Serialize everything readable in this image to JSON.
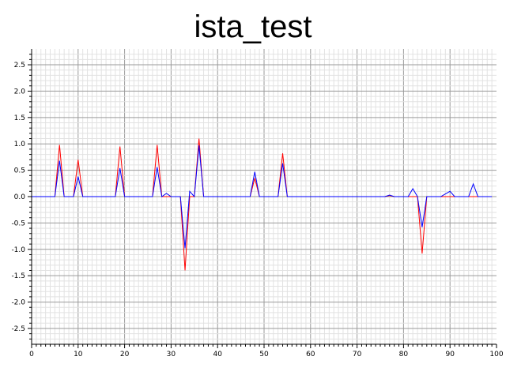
{
  "chart_data": {
    "type": "line",
    "title": "ista_test",
    "xlabel": "",
    "ylabel": "",
    "xlim": [
      0,
      100
    ],
    "ylim": [
      -2.8,
      2.8
    ],
    "grid": true,
    "x_ticks": [
      0,
      10,
      20,
      30,
      40,
      50,
      60,
      70,
      80,
      90,
      100
    ],
    "y_ticks": [
      2.5,
      2.0,
      1.5,
      1.0,
      0.5,
      0.0,
      -0.5,
      -1.0,
      -1.5,
      -2.0,
      -2.5
    ],
    "x_tick_labels": [
      "0",
      "10",
      "20",
      "30",
      "40",
      "50",
      "60",
      "70",
      "80",
      "90",
      "100"
    ],
    "y_tick_labels": [
      "2.5",
      "2.0",
      "1.5",
      "1.0",
      "0.5",
      "0.0",
      "-0.5",
      "-1.0",
      "-1.5",
      "-2.0",
      "-2.5"
    ],
    "series": [
      {
        "color": "#ff0000",
        "points": [
          [
            0,
            0
          ],
          [
            5,
            0
          ],
          [
            6,
            0.98
          ],
          [
            7,
            0
          ],
          [
            9,
            0
          ],
          [
            10,
            0.7
          ],
          [
            11,
            0
          ],
          [
            18,
            0
          ],
          [
            19,
            0.95
          ],
          [
            20,
            0
          ],
          [
            26,
            0
          ],
          [
            27,
            0.98
          ],
          [
            28,
            0
          ],
          [
            32,
            0
          ],
          [
            33,
            -1.4
          ],
          [
            34,
            0
          ],
          [
            35,
            0
          ],
          [
            36,
            1.1
          ],
          [
            37,
            0
          ],
          [
            47,
            0
          ],
          [
            48,
            0.35
          ],
          [
            49,
            0
          ],
          [
            53,
            0
          ],
          [
            54,
            0.82
          ],
          [
            55,
            0
          ],
          [
            76,
            0
          ],
          [
            77,
            0.02
          ],
          [
            78,
            0
          ],
          [
            83,
            0
          ],
          [
            84,
            -1.08
          ],
          [
            85,
            0
          ],
          [
            99,
            0
          ]
        ]
      },
      {
        "color": "#0000ff",
        "points": [
          [
            0,
            0
          ],
          [
            5,
            0
          ],
          [
            6,
            0.68
          ],
          [
            7,
            0
          ],
          [
            9,
            0
          ],
          [
            10,
            0.38
          ],
          [
            11,
            0
          ],
          [
            18,
            0
          ],
          [
            19,
            0.54
          ],
          [
            20,
            0
          ],
          [
            26,
            0
          ],
          [
            27,
            0.56
          ],
          [
            28,
            0
          ],
          [
            29,
            0.06
          ],
          [
            30,
            0
          ],
          [
            32,
            0
          ],
          [
            33,
            -0.98
          ],
          [
            34,
            0.1
          ],
          [
            35,
            0
          ],
          [
            36,
            0.97
          ],
          [
            37,
            0
          ],
          [
            47,
            0
          ],
          [
            48,
            0.47
          ],
          [
            49,
            0
          ],
          [
            53,
            0
          ],
          [
            54,
            0.63
          ],
          [
            55,
            0
          ],
          [
            76,
            0
          ],
          [
            77,
            0.03
          ],
          [
            78,
            0
          ],
          [
            81,
            0
          ],
          [
            82,
            0.15
          ],
          [
            83,
            0
          ],
          [
            84,
            -0.58
          ],
          [
            85,
            0
          ],
          [
            88,
            0
          ],
          [
            90,
            0.1
          ],
          [
            91,
            0
          ],
          [
            94,
            0
          ],
          [
            95,
            0.24
          ],
          [
            96,
            0
          ],
          [
            99,
            0
          ]
        ]
      }
    ]
  }
}
